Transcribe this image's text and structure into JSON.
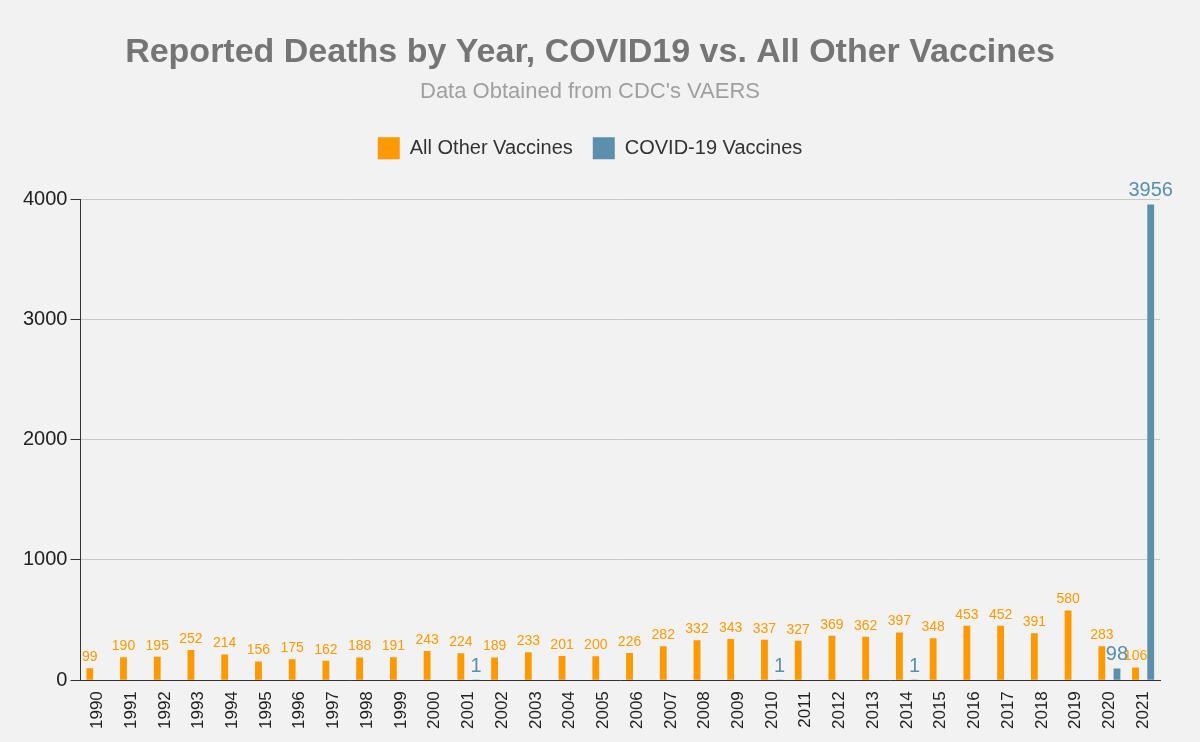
{
  "chart_data": {
    "type": "bar",
    "title": "Reported Deaths by Year, COVID19 vs. All Other Vaccines",
    "subtitle": "Data Obtained from CDC's VAERS",
    "categories": [
      "1990",
      "1991",
      "1992",
      "1993",
      "1994",
      "1995",
      "1996",
      "1997",
      "1998",
      "1999",
      "2000",
      "2001",
      "2002",
      "2003",
      "2004",
      "2005",
      "2006",
      "2007",
      "2008",
      "2009",
      "2010",
      "2011",
      "2012",
      "2013",
      "2014",
      "2015",
      "2016",
      "2017",
      "2018",
      "2019",
      "2020",
      "2021"
    ],
    "series": [
      {
        "name": "All Other Vaccines",
        "color": "#ff9900",
        "values": [
          99,
          190,
          195,
          252,
          214,
          156,
          175,
          162,
          188,
          191,
          243,
          224,
          189,
          233,
          201,
          200,
          226,
          282,
          332,
          343,
          337,
          327,
          369,
          362,
          397,
          348,
          453,
          452,
          391,
          580,
          283,
          106
        ]
      },
      {
        "name": "COVID-19 Vaccines",
        "color": "#5b8fab",
        "values": [
          null,
          null,
          null,
          null,
          null,
          null,
          null,
          null,
          null,
          null,
          null,
          1,
          null,
          null,
          null,
          null,
          null,
          null,
          null,
          null,
          1,
          null,
          null,
          null,
          1,
          null,
          null,
          null,
          null,
          null,
          98,
          3956
        ]
      }
    ],
    "ylim": [
      0,
      4000
    ],
    "yticks": [
      0,
      1000,
      2000,
      3000,
      4000
    ],
    "grid": true,
    "legend": "top",
    "data_labels": true
  }
}
